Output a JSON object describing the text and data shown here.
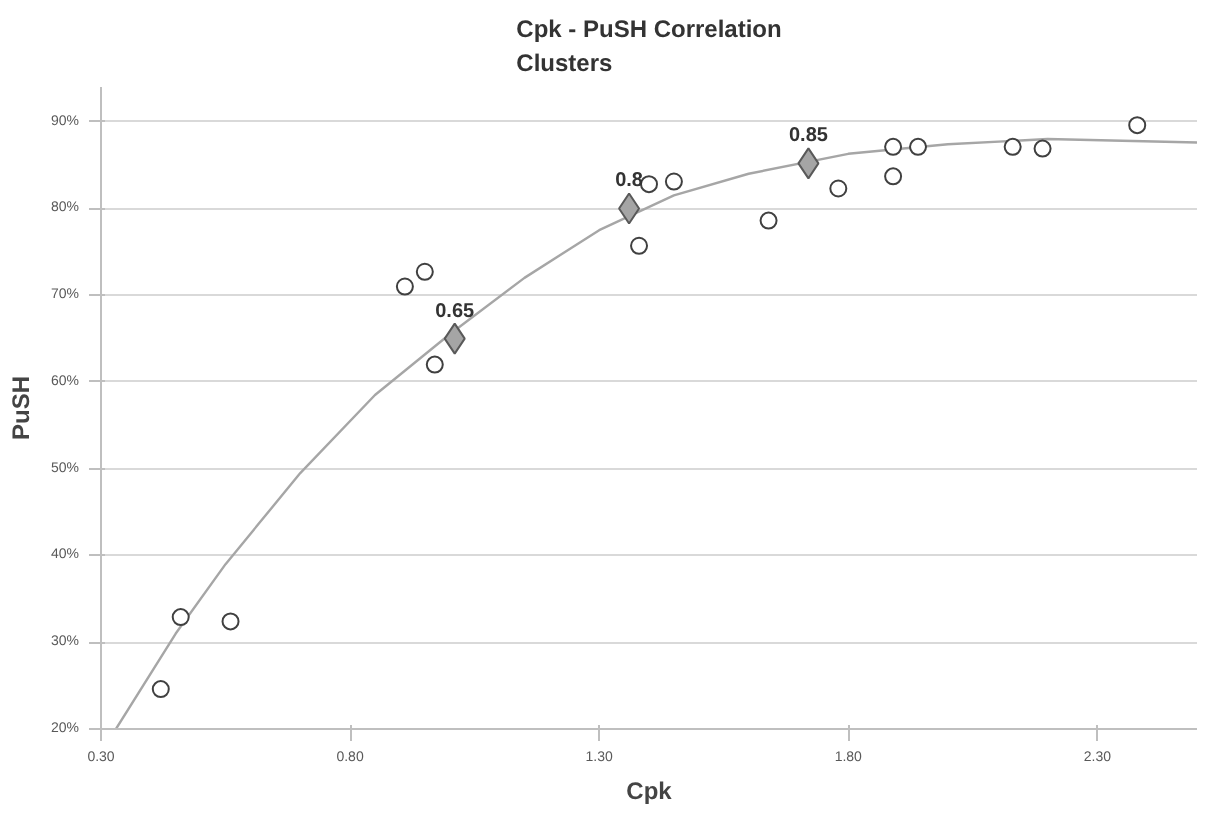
{
  "chart_data": {
    "type": "scatter",
    "title": "Cpk - PuSH Correlation\nClusters",
    "xlabel": "Cpk",
    "ylabel": "PuSH",
    "xlim": [
      0.3,
      2.5
    ],
    "ylim": [
      20,
      94
    ],
    "xticks": [
      {
        "value": 0.3,
        "label": "0.30"
      },
      {
        "value": 0.8,
        "label": "0.80"
      },
      {
        "value": 1.3,
        "label": "1.30"
      },
      {
        "value": 1.8,
        "label": "1.80"
      },
      {
        "value": 2.3,
        "label": "2.30"
      }
    ],
    "yticks": [
      {
        "value": 20,
        "label": "20%"
      },
      {
        "value": 30,
        "label": "30%"
      },
      {
        "value": 40,
        "label": "40%"
      },
      {
        "value": 50,
        "label": "50%"
      },
      {
        "value": 60,
        "label": "60%"
      },
      {
        "value": 70,
        "label": "70%"
      },
      {
        "value": 80,
        "label": "80%"
      },
      {
        "value": 90,
        "label": "90%"
      }
    ],
    "grid": "y",
    "series": [
      {
        "type": "line",
        "color": "#a6a6a6",
        "line_style": "solid",
        "marker": "none",
        "x": [
          0.33,
          0.45,
          0.55,
          0.7,
          0.85,
          1.0,
          1.15,
          1.3,
          1.45,
          1.6,
          1.8,
          2.0,
          2.2,
          2.5
        ],
        "values": [
          20,
          31,
          39,
          49.5,
          58.5,
          65.5,
          72,
          77.5,
          81.5,
          84,
          86.3,
          87.4,
          88,
          87.6
        ]
      },
      {
        "color": "#404040",
        "marker": "circle",
        "x": [
          0.42,
          0.46,
          0.56,
          0.91,
          0.95,
          0.97,
          1.38,
          1.4,
          1.45,
          1.64,
          1.78,
          1.89,
          1.94,
          1.89,
          2.13,
          2.19,
          2.38
        ],
        "values": [
          24.6,
          32.9,
          32.4,
          71.0,
          72.7,
          62.0,
          75.7,
          82.8,
          83.1,
          78.6,
          82.3,
          87.1,
          87.1,
          83.7,
          87.1,
          86.9,
          89.6
        ]
      },
      {
        "color": "#a5a5a5",
        "marker": "diamond",
        "x": [
          1.01,
          1.36,
          1.72
        ],
        "values": [
          65,
          80,
          85.2
        ]
      }
    ],
    "annotations": [
      {
        "text": "0.65",
        "x": 1.01,
        "y": 65
      },
      {
        "text": "0.8",
        "x": 1.36,
        "y": 80
      },
      {
        "text": "0.85",
        "x": 1.72,
        "y": 85.2
      }
    ]
  }
}
